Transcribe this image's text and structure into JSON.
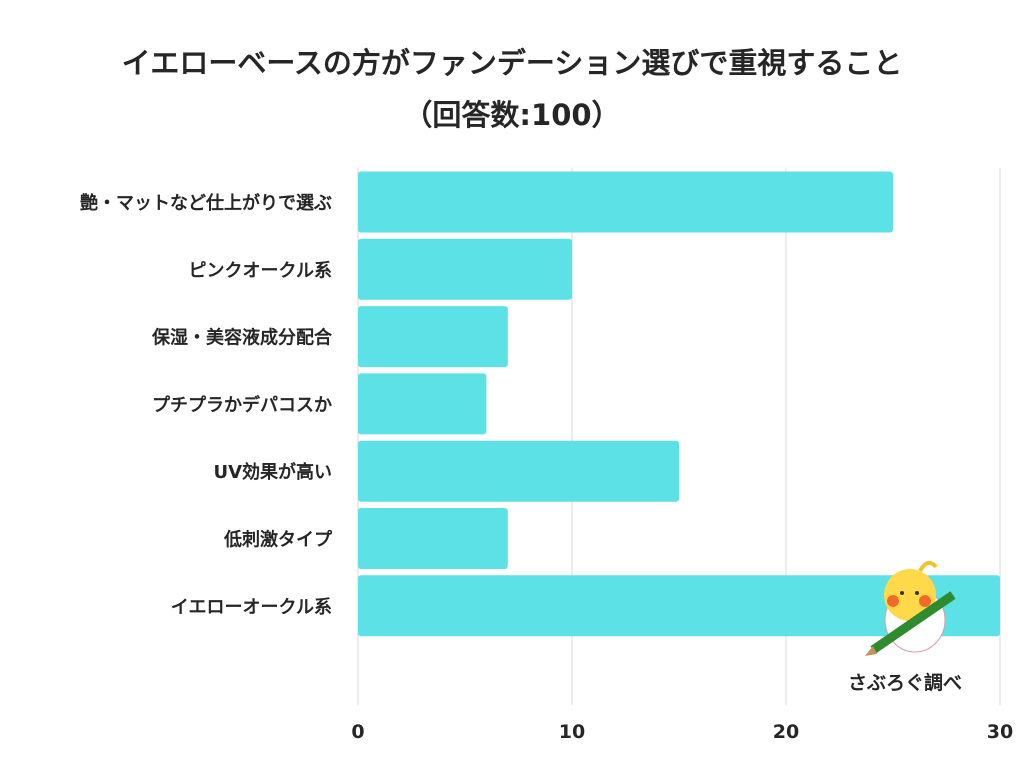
{
  "chart_data": {
    "type": "bar",
    "orientation": "horizontal",
    "title": "イエローベースの方がファンデーション選びで重視すること",
    "subtitle": "（回答数:100）",
    "categories": [
      "艶・マットなど仕上がりで選ぶ",
      "ピンクオークル系",
      "保湿・美容液成分配合",
      "プチプラかデパコスか",
      "UV効果が高い",
      "低刺激タイプ",
      "イエローオークル系"
    ],
    "values": [
      25,
      10,
      7,
      6,
      15,
      7,
      30
    ],
    "xlim": [
      0,
      30
    ],
    "xticks": [
      "0",
      "10",
      "20",
      "30"
    ],
    "grid": true,
    "bar_color": "#5CE1E6"
  },
  "credit": "さぶろぐ調べ"
}
